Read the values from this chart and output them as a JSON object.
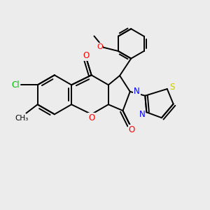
{
  "background_color": "#ececec",
  "bond_color": "#000000",
  "atom_colors": {
    "O": "#ff0000",
    "N": "#0000ff",
    "S": "#cccc00",
    "Cl": "#00bb00",
    "C": "#000000"
  },
  "figsize": [
    3.0,
    3.0
  ],
  "dpi": 100,
  "lw": 1.4
}
